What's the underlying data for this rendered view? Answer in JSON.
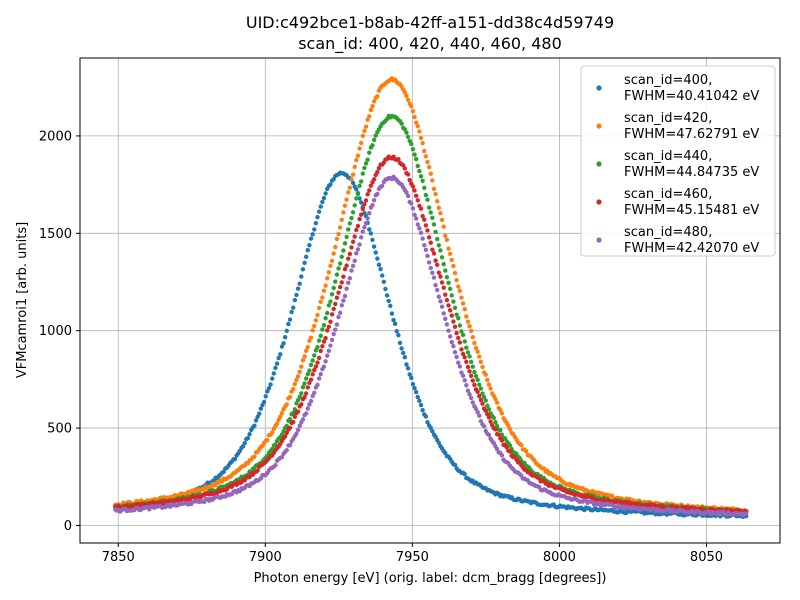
{
  "chart_data": {
    "type": "scatter",
    "title": "UID:c492bce1-b8ab-42ff-a151-dd38c4d59749",
    "subtitle": "scan_id: 400, 420, 440, 460, 480",
    "xlabel": "Photon energy [eV] (orig. label: dcm_bragg [degrees])",
    "ylabel": "VFMcamroi1 [arb. units]",
    "xlim": [
      7837,
      8075
    ],
    "ylim": [
      -90,
      2400
    ],
    "xticks": [
      7850,
      7900,
      7950,
      8000,
      8050
    ],
    "yticks": [
      0,
      500,
      1000,
      1500,
      2000
    ],
    "grid": true,
    "legend_position": "top-right",
    "x_range": [
      7849,
      8064
    ],
    "series": [
      {
        "label_line1": "scan_id=400,",
        "label_line2": "FWHM=40.41042 eV",
        "color": "#1f77b4",
        "center": 7926,
        "peak": 1810,
        "fwhm": 40.41,
        "baseline": 30,
        "peak_x_max_value": 1815
      },
      {
        "label_line1": "scan_id=420,",
        "label_line2": "FWHM=47.62791 eV",
        "color": "#ff7f0e",
        "center": 7943,
        "peak": 2290,
        "fwhm": 47.63,
        "baseline": 32
      },
      {
        "label_line1": "scan_id=440,",
        "label_line2": "FWHM=44.84735 eV",
        "color": "#2ca02c",
        "center": 7943,
        "peak": 2100,
        "fwhm": 44.85,
        "baseline": 35
      },
      {
        "label_line1": "scan_id=460,",
        "label_line2": "FWHM=45.15481 eV",
        "color": "#d62728",
        "center": 7943,
        "peak": 1890,
        "fwhm": 45.15,
        "baseline": 38
      },
      {
        "label_line1": "scan_id=480,",
        "label_line2": "FWHM=42.42070 eV",
        "color": "#9467bd",
        "center": 7943,
        "peak": 1785,
        "fwhm": 42.42,
        "baseline": 30
      }
    ]
  }
}
